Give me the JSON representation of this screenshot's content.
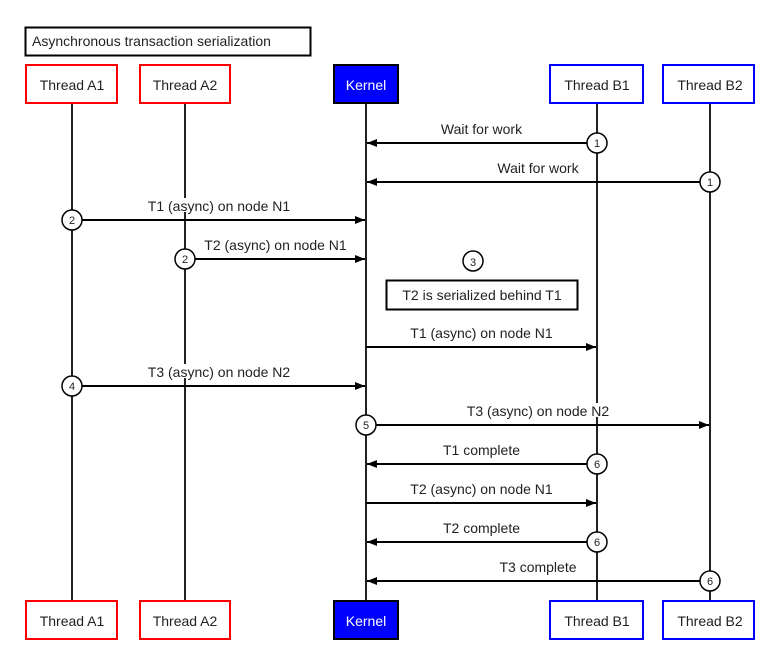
{
  "title": "Asynchronous transaction serialization",
  "participants": [
    {
      "id": "A1",
      "label": "Thread A1",
      "border": "#ff0000",
      "fill": "#ffffff",
      "text": "#222222"
    },
    {
      "id": "A2",
      "label": "Thread A2",
      "border": "#ff0000",
      "fill": "#ffffff",
      "text": "#222222"
    },
    {
      "id": "K",
      "label": "Kernel",
      "border": "#000000",
      "fill": "#0000ff",
      "text": "#ffffff"
    },
    {
      "id": "B1",
      "label": "Thread B1",
      "border": "#0000ff",
      "fill": "#ffffff",
      "text": "#222222"
    },
    {
      "id": "B2",
      "label": "Thread B2",
      "border": "#0000ff",
      "fill": "#ffffff",
      "text": "#222222"
    }
  ],
  "messages": [
    {
      "from": "B1",
      "to": "K",
      "label": "Wait for work",
      "step": "1"
    },
    {
      "from": "B2",
      "to": "K",
      "label": "Wait for work",
      "step": "1"
    },
    {
      "from": "A1",
      "to": "K",
      "label": "T1 (async) on node N1",
      "step": "2"
    },
    {
      "from": "A2",
      "to": "K",
      "label": "T2 (async) on node N1",
      "step": "2"
    },
    {
      "note": "T2 is serialized behind T1",
      "step": "3"
    },
    {
      "from": "K",
      "to": "B1",
      "label": "T1 (async) on node N1",
      "step": ""
    },
    {
      "from": "A1",
      "to": "K",
      "label": "T3 (async) on node N2",
      "step": "4"
    },
    {
      "from": "K",
      "to": "B2",
      "label": "T3 (async) on node N2",
      "step": "5"
    },
    {
      "from": "B1",
      "to": "K",
      "label": "T1 complete",
      "step": "6"
    },
    {
      "from": "K",
      "to": "B1",
      "label": "T2 (async) on node N1",
      "step": ""
    },
    {
      "from": "B1",
      "to": "K",
      "label": "T2 complete",
      "step": "6"
    },
    {
      "from": "B2",
      "to": "K",
      "label": "T3 complete",
      "step": "6"
    }
  ]
}
